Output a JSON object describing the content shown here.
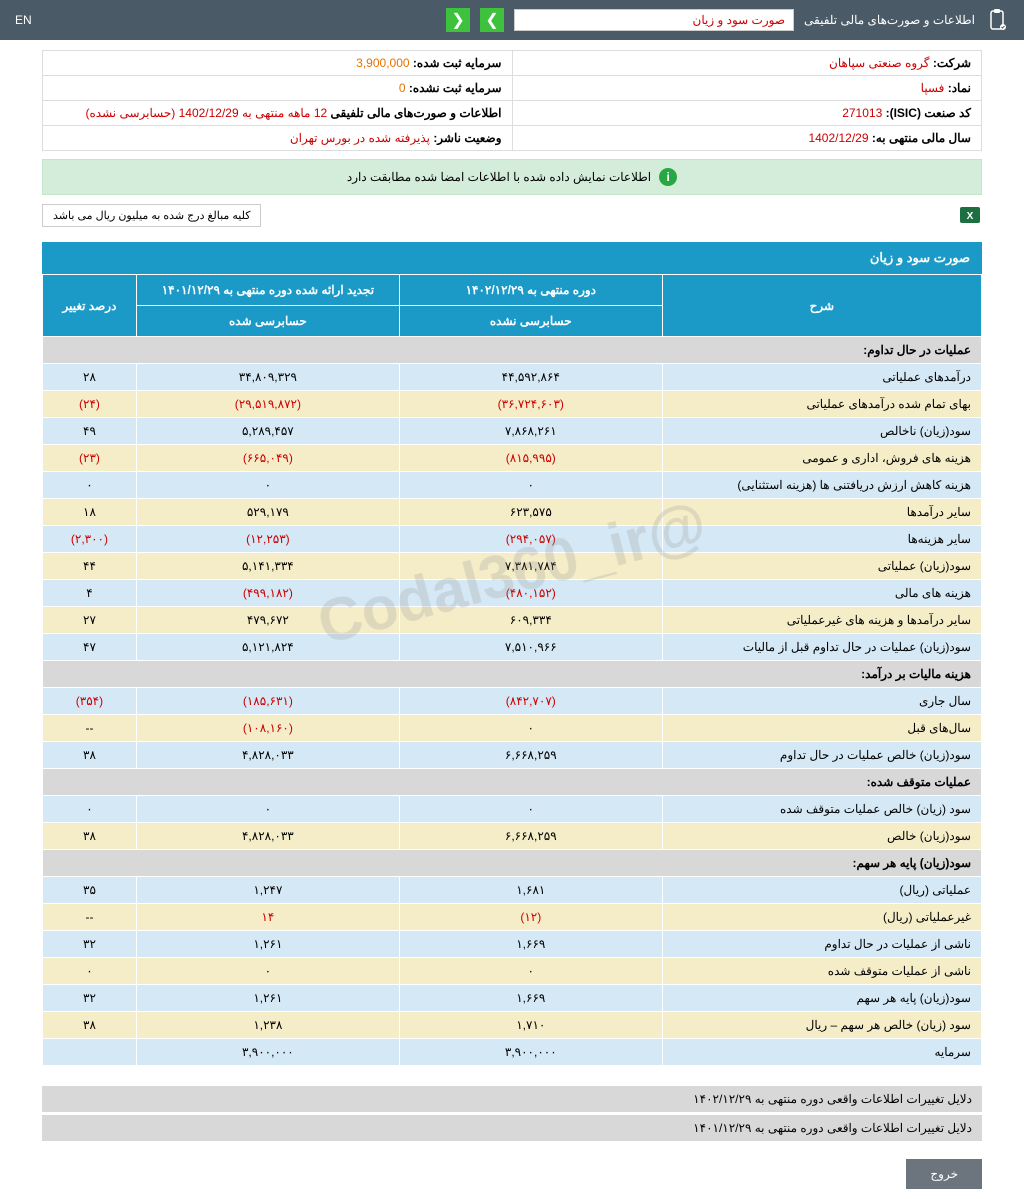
{
  "header": {
    "title": "اطلاعات و صورت‌های مالی تلفیقی",
    "dropdown_text": "صورت سود و زیان",
    "lang": "EN"
  },
  "info": {
    "company_label": "شرکت:",
    "company_value": "گروه صنعتی سپاهان",
    "capital_reg_label": "سرمایه ثبت شده:",
    "capital_reg_value": "3,900,000",
    "symbol_label": "نماد:",
    "symbol_value": "فسپا",
    "capital_unreg_label": "سرمایه ثبت نشده:",
    "capital_unreg_value": "0",
    "isic_label": "کد صنعت (ISIC):",
    "isic_value": "271013",
    "statements_label": "اطلاعات و صورت‌های مالی تلفیقی",
    "statements_value": "12 ماهه منتهی به 1402/12/29 (حسابرسی نشده)",
    "fiscal_year_label": "سال مالی منتهی به:",
    "fiscal_year_value": "1402/12/29",
    "publisher_label": "وضعیت ناشر:",
    "publisher_value": "پذیرفته شده در بورس تهران"
  },
  "message": "اطلاعات نمایش داده شده با اطلاعات امضا شده مطابقت دارد",
  "note": "کلیه مبالغ درج شده به میلیون ریال می باشد",
  "watermark": "@Codal360_ir",
  "table": {
    "title": "صورت سود و زیان",
    "col_desc": "شرح",
    "col_current": "دوره منتهی به ۱۴۰۲/۱۲/۲۹",
    "col_prev": "تجدید ارائه شده دوره منتهی به ۱۴۰۱/۱۲/۲۹",
    "col_change": "درصد تغییر",
    "sub_unaudited": "حسابرسی نشده",
    "sub_audited": "حسابرسی شده",
    "sections": {
      "s1": "عملیات در حال تداوم:",
      "s2": "هزینه مالیات بر درآمد:",
      "s3": "عملیات متوقف شده:",
      "s4": "سود(زیان) پایه هر سهم:"
    },
    "rows": [
      {
        "desc": "درآمدهای عملیاتی",
        "cur": "۴۴,۵۹۲,۸۶۴",
        "prev": "۳۴,۸۰۹,۳۲۹",
        "chg": "۲۸",
        "cls": "row-blue"
      },
      {
        "desc": "بهای تمام شده درآمدهای عملیاتی",
        "cur": "(۳۶,۷۲۴,۶۰۳)",
        "prev": "(۲۹,۵۱۹,۸۷۲)",
        "chg": "(۲۴)",
        "cls": "row-yellow",
        "neg": true,
        "chg_neg": true
      },
      {
        "desc": "سود(زیان) ناخالص",
        "cur": "۷,۸۶۸,۲۶۱",
        "prev": "۵,۲۸۹,۴۵۷",
        "chg": "۴۹",
        "cls": "row-blue"
      },
      {
        "desc": "هزینه های فروش، اداری و عمومی",
        "cur": "(۸۱۵,۹۹۵)",
        "prev": "(۶۶۵,۰۴۹)",
        "chg": "(۲۳)",
        "cls": "row-yellow",
        "neg": true,
        "chg_neg": true
      },
      {
        "desc": "هزینه کاهش ارزش دریافتنی ها (هزینه استثنایی)",
        "cur": "۰",
        "prev": "۰",
        "chg": "۰",
        "cls": "row-blue"
      },
      {
        "desc": "سایر درآمدها",
        "cur": "۶۲۳,۵۷۵",
        "prev": "۵۲۹,۱۷۹",
        "chg": "۱۸",
        "cls": "row-yellow"
      },
      {
        "desc": "سایر هزینه‌ها",
        "cur": "(۲۹۴,۰۵۷)",
        "prev": "(۱۲,۲۵۳)",
        "chg": "(۲,۳۰۰)",
        "cls": "row-blue",
        "neg": true,
        "chg_neg": true
      },
      {
        "desc": "سود(زیان) عملیاتی",
        "cur": "۷,۳۸۱,۷۸۴",
        "prev": "۵,۱۴۱,۳۳۴",
        "chg": "۴۴",
        "cls": "row-yellow"
      },
      {
        "desc": "هزینه های مالی",
        "cur": "(۴۸۰,۱۵۲)",
        "prev": "(۴۹۹,۱۸۲)",
        "chg": "۴",
        "cls": "row-blue",
        "neg": true
      },
      {
        "desc": "سایر درآمدها و هزینه های غیرعملیاتی",
        "cur": "۶۰۹,۳۳۴",
        "prev": "۴۷۹,۶۷۲",
        "chg": "۲۷",
        "cls": "row-yellow"
      },
      {
        "desc": "سود(زیان) عملیات در حال تداوم قبل از مالیات",
        "cur": "۷,۵۱۰,۹۶۶",
        "prev": "۵,۱۲۱,۸۲۴",
        "chg": "۴۷",
        "cls": "row-blue"
      }
    ],
    "rows2": [
      {
        "desc": "سال جاری",
        "cur": "(۸۴۲,۷۰۷)",
        "prev": "(۱۸۵,۶۳۱)",
        "chg": "(۳۵۴)",
        "cls": "row-blue",
        "neg": true,
        "chg_neg": true
      },
      {
        "desc": "سال‌های قبل",
        "cur": "۰",
        "prev": "(۱۰۸,۱۶۰)",
        "chg": "--",
        "cls": "row-yellow",
        "prev_neg": true
      },
      {
        "desc": "سود(زیان) خالص عملیات در حال تداوم",
        "cur": "۶,۶۶۸,۲۵۹",
        "prev": "۴,۸۲۸,۰۳۳",
        "chg": "۳۸",
        "cls": "row-blue"
      }
    ],
    "rows3": [
      {
        "desc": "سود (زیان) خالص عملیات متوقف شده",
        "cur": "۰",
        "prev": "۰",
        "chg": "۰",
        "cls": "row-blue"
      },
      {
        "desc": "سود(زیان) خالص",
        "cur": "۶,۶۶۸,۲۵۹",
        "prev": "۴,۸۲۸,۰۳۳",
        "chg": "۳۸",
        "cls": "row-yellow"
      }
    ],
    "rows4": [
      {
        "desc": "عملیاتی (ریال)",
        "cur": "۱,۶۸۱",
        "prev": "۱,۲۴۷",
        "chg": "۳۵",
        "cls": "row-blue"
      },
      {
        "desc": "غیرعملیاتی (ریال)",
        "cur": "(۱۲)",
        "prev": "۱۴",
        "chg": "--",
        "cls": "row-yellow",
        "neg": true
      },
      {
        "desc": "ناشی از عملیات در حال تداوم",
        "cur": "۱,۶۶۹",
        "prev": "۱,۲۶۱",
        "chg": "۳۲",
        "cls": "row-blue"
      },
      {
        "desc": "ناشی از عملیات متوقف شده",
        "cur": "۰",
        "prev": "۰",
        "chg": "۰",
        "cls": "row-yellow"
      },
      {
        "desc": "سود(زیان) پایه هر سهم",
        "cur": "۱,۶۶۹",
        "prev": "۱,۲۶۱",
        "chg": "۳۲",
        "cls": "row-blue"
      },
      {
        "desc": "سود (زیان) خالص هر سهم – ریال",
        "cur": "۱,۷۱۰",
        "prev": "۱,۲۳۸",
        "chg": "۳۸",
        "cls": "row-yellow"
      },
      {
        "desc": "سرمایه",
        "cur": "۳,۹۰۰,۰۰۰",
        "prev": "۳,۹۰۰,۰۰۰",
        "chg": "",
        "cls": "row-blue"
      }
    ]
  },
  "reasons": {
    "r1": "دلایل تغییرات اطلاعات واقعی دوره منتهی به ۱۴۰۲/۱۲/۲۹",
    "r2": "دلایل تغییرات اطلاعات واقعی دوره منتهی به ۱۴۰۱/۱۲/۲۹"
  },
  "exit_btn": "خروج"
}
